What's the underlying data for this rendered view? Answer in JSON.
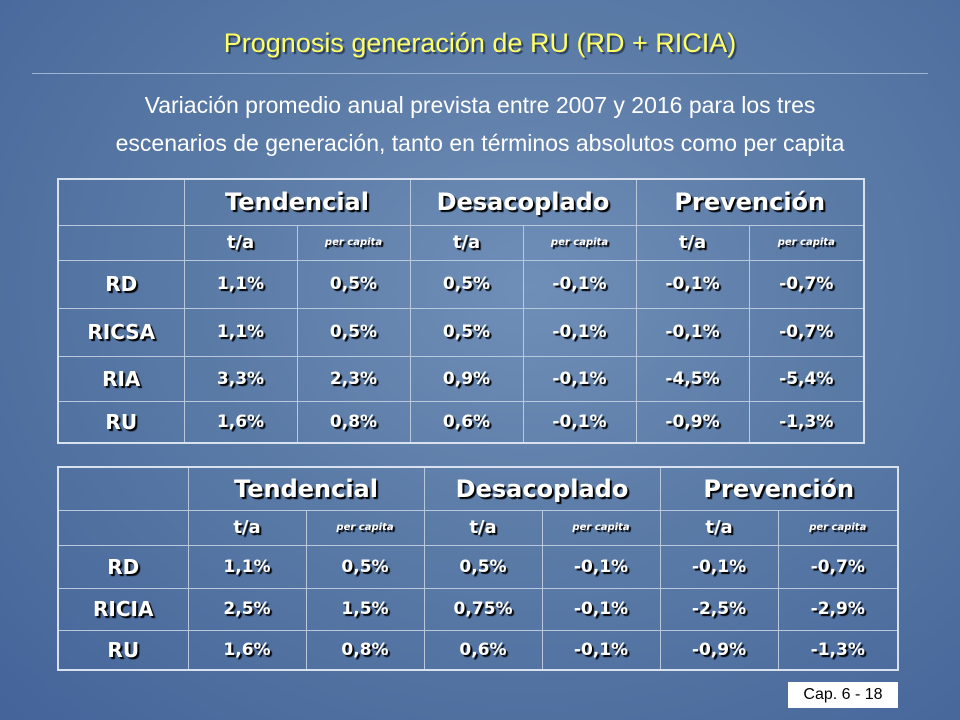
{
  "slide": {
    "title": "Prognosis generación de RU (RD + RICIA)",
    "subtitle_line1": "Variación promedio anual prevista entre 2007 y 2016 para los tres",
    "subtitle_line2": "escenarios de generación, tanto en términos absolutos como per capita",
    "footer": "Cap. 6 - 18"
  },
  "table1": {
    "headers": [
      "Tendencial",
      "Desacoplado",
      "Prevención"
    ],
    "subheaders": [
      "t/a",
      "per capita",
      "t/a",
      "per capita",
      "t/a",
      "per capita"
    ],
    "rows": [
      {
        "label": "RD",
        "values": [
          "1,1%",
          "0,5%",
          "0,5%",
          "-0,1%",
          "-0,1%",
          "-0,7%"
        ]
      },
      {
        "label": "RICSA",
        "values": [
          "1,1%",
          "0,5%",
          "0,5%",
          "-0,1%",
          "-0,1%",
          "-0,7%"
        ]
      },
      {
        "label": "RIA",
        "values": [
          "3,3%",
          "2,3%",
          "0,9%",
          "-0,1%",
          "-4,5%",
          "-5,4%"
        ]
      },
      {
        "label": "RU",
        "values": [
          "1,6%",
          "0,8%",
          "0,6%",
          "-0,1%",
          "-0,9%",
          "-1,3%"
        ]
      }
    ]
  },
  "table2": {
    "headers": [
      "Tendencial",
      "Desacoplado",
      "Prevención"
    ],
    "subheaders": [
      "t/a",
      "per capita",
      "t/a",
      "per capita",
      "t/a",
      "per capita"
    ],
    "rows": [
      {
        "label": "RD",
        "values": [
          "1,1%",
          "0,5%",
          "0,5%",
          "-0,1%",
          "-0,1%",
          "-0,7%"
        ]
      },
      {
        "label": "RICIA",
        "values": [
          "2,5%",
          "1,5%",
          "0,75%",
          "-0,1%",
          "-2,5%",
          "-2,9%"
        ]
      },
      {
        "label": "RU",
        "values": [
          "1,6%",
          "0,8%",
          "0,6%",
          "-0,1%",
          "-0,9%",
          "-1,3%"
        ]
      }
    ]
  },
  "colors": {
    "background": "#5a7aa6",
    "title": "#ffff66",
    "text": "#ffffff"
  }
}
